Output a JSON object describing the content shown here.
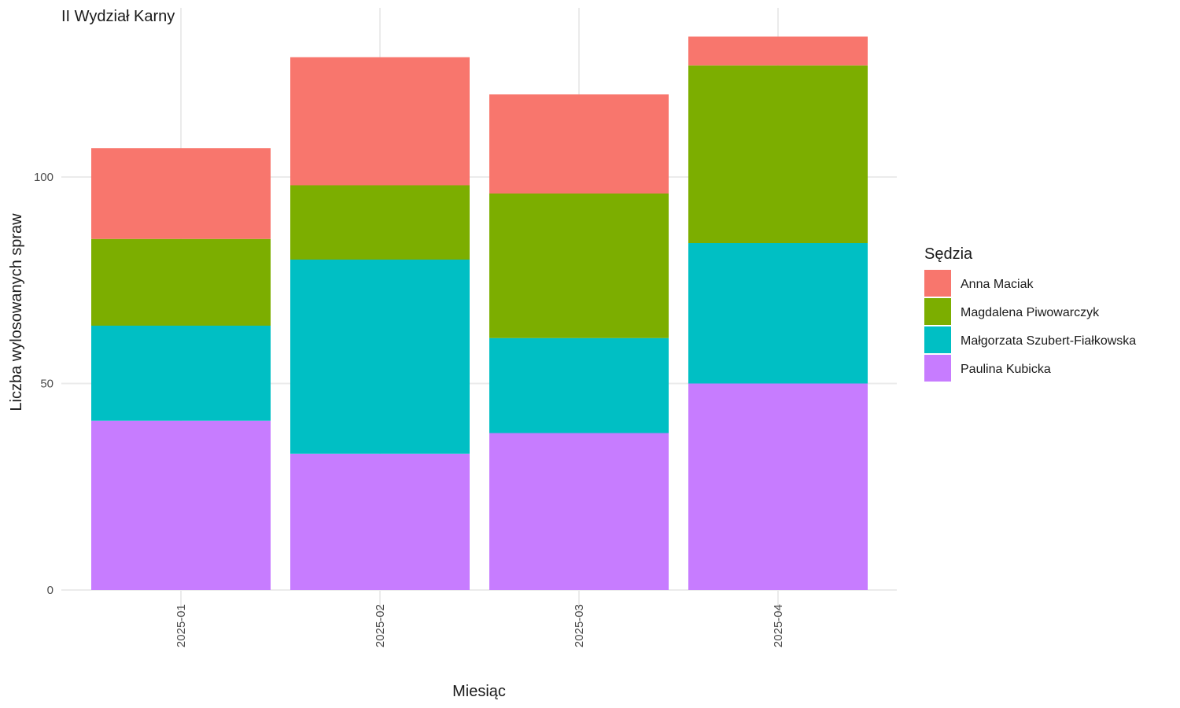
{
  "chart_data": {
    "type": "bar",
    "stacked": true,
    "title": "II Wydział Karny",
    "xlabel": "Miesiąc",
    "ylabel": "Liczba wylosowanych spraw",
    "categories": [
      "2025-01",
      "2025-02",
      "2025-03",
      "2025-04"
    ],
    "ylim": [
      0,
      140
    ],
    "yticks": [
      0,
      50,
      100
    ],
    "grid": true,
    "legend": {
      "title": "Sędzia",
      "position": "right"
    },
    "series": [
      {
        "name": "Paulina Kubicka",
        "color": "#C77CFF",
        "values": [
          41,
          33,
          38,
          50
        ]
      },
      {
        "name": "Małgorzata Szubert-Fiałkowska",
        "color": "#00BFC4",
        "values": [
          23,
          47,
          23,
          34
        ]
      },
      {
        "name": "Magdalena Piwowarczyk",
        "color": "#7CAE00",
        "values": [
          21,
          18,
          35,
          43
        ]
      },
      {
        "name": "Anna Maciak",
        "color": "#F8766D",
        "values": [
          22,
          31,
          24,
          7
        ]
      }
    ],
    "legend_order": [
      "Anna Maciak",
      "Magdalena Piwowarczyk",
      "Małgorzata Szubert-Fiałkowska",
      "Paulina Kubicka"
    ]
  }
}
